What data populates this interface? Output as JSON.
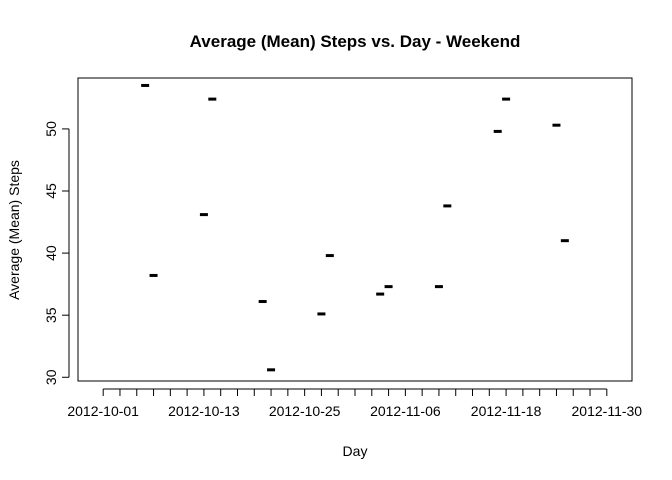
{
  "chart_data": {
    "type": "scatter",
    "title": "Average (Mean) Steps vs. Day - Weekend",
    "xlabel": "Day",
    "ylabel": "Average (Mean) Steps",
    "xlim": [
      "2012-09-28",
      "2012-12-03"
    ],
    "ylim": [
      29.7,
      54.1
    ],
    "x_tick_labels": [
      "2012-10-01",
      "2012-10-13",
      "2012-10-25",
      "2012-11-06",
      "2012-11-18",
      "2012-11-30"
    ],
    "y_ticks": [
      30,
      35,
      40,
      45,
      50
    ],
    "grid": false,
    "points": [
      {
        "x": "2012-10-06",
        "y": 53.5
      },
      {
        "x": "2012-10-07",
        "y": 38.2
      },
      {
        "x": "2012-10-13",
        "y": 43.1
      },
      {
        "x": "2012-10-14",
        "y": 52.4
      },
      {
        "x": "2012-10-20",
        "y": 36.1
      },
      {
        "x": "2012-10-21",
        "y": 30.6
      },
      {
        "x": "2012-10-27",
        "y": 35.1
      },
      {
        "x": "2012-10-28",
        "y": 39.8
      },
      {
        "x": "2012-11-03",
        "y": 36.7
      },
      {
        "x": "2012-11-04",
        "y": 37.3
      },
      {
        "x": "2012-11-10",
        "y": 37.3
      },
      {
        "x": "2012-11-11",
        "y": 43.8
      },
      {
        "x": "2012-11-17",
        "y": 49.8
      },
      {
        "x": "2012-11-18",
        "y": 52.4
      },
      {
        "x": "2012-11-24",
        "y": 50.3
      },
      {
        "x": "2012-11-25",
        "y": 41.0
      }
    ]
  }
}
